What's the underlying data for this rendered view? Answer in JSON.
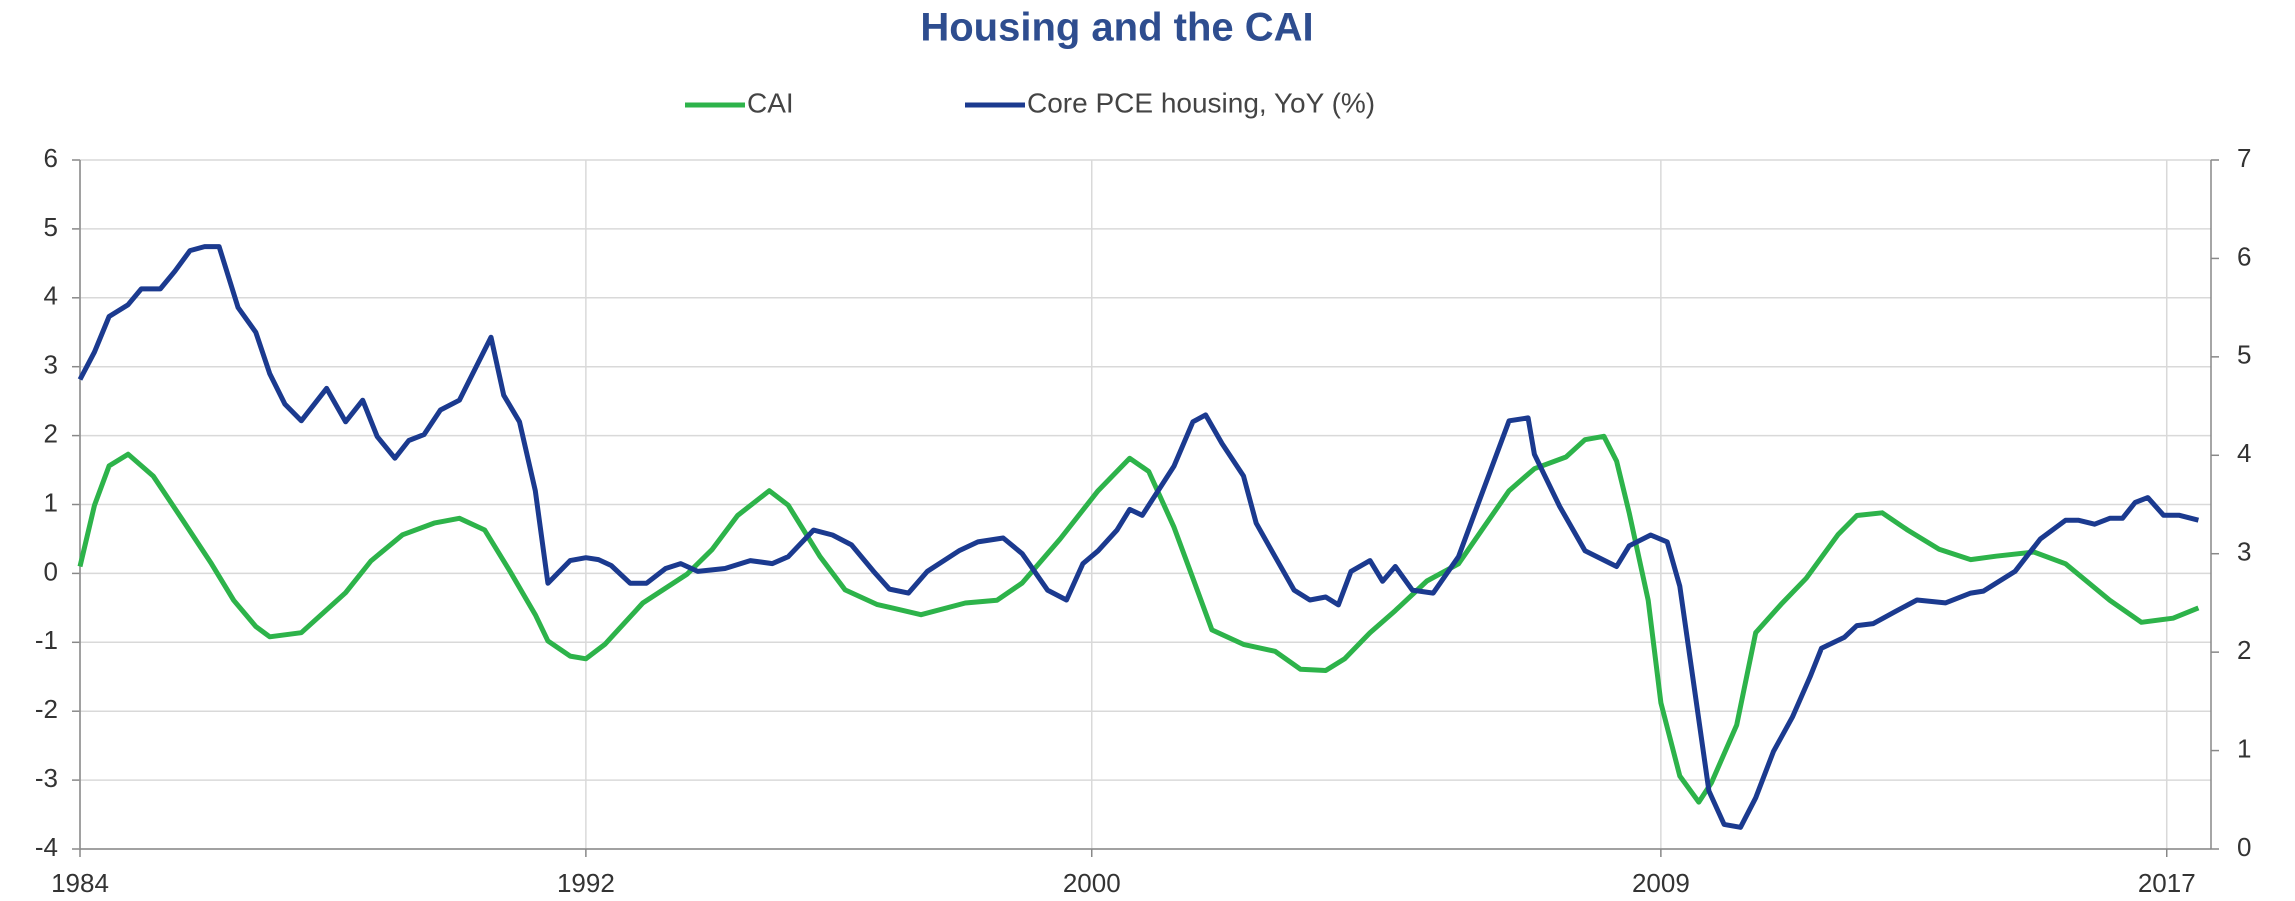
{
  "chart_data": {
    "type": "line",
    "title": "Housing and the CAI",
    "xlim": [
      1984,
      2017.7
    ],
    "xticks": [
      1984,
      1992,
      2000,
      2009,
      2017
    ],
    "ylim": [
      -4,
      6
    ],
    "yticks": [
      -4,
      -3,
      -2,
      -1,
      0,
      1,
      2,
      3,
      4,
      5,
      6
    ],
    "y2lim": [
      0,
      7
    ],
    "y2ticks": [
      0,
      1,
      2,
      3,
      4,
      5,
      6,
      7
    ],
    "grid": true,
    "legend": "top",
    "series": [
      {
        "name": "CAI",
        "color": "#2db34a",
        "x": [
          1984.0,
          1984.23,
          1984.46,
          1984.76,
          1985.16,
          1985.62,
          1986.08,
          1986.43,
          1986.78,
          1987.0,
          1987.5,
          1988.2,
          1988.6,
          1989.1,
          1989.6,
          1990.0,
          1990.4,
          1990.8,
          1991.2,
          1991.4,
          1991.75,
          1992.0,
          1992.3,
          1992.9,
          1993.6,
          1994.0,
          1994.4,
          1994.9,
          1995.2,
          1995.7,
          1996.1,
          1996.6,
          1997.3,
          1998.0,
          1998.5,
          1998.9,
          1999.5,
          2000.1,
          2000.6,
          2000.9,
          2001.3,
          2001.6,
          2001.9,
          2002.4,
          2002.9,
          2003.3,
          2003.7,
          2004.0,
          2004.4,
          2004.8,
          2005.3,
          2005.8,
          2006.2,
          2006.6,
          2007.0,
          2007.5,
          2007.8,
          2008.1,
          2008.3,
          2008.5,
          2008.8,
          2009.0,
          2009.3,
          2009.6,
          2009.8,
          2010.2,
          2010.5,
          2010.9,
          2011.3,
          2011.8,
          2012.1,
          2012.5,
          2012.9,
          2013.4,
          2013.9,
          2014.3,
          2014.9,
          2015.4,
          2016.1,
          2016.6,
          2017.1,
          2017.5
        ],
        "values": [
          0.1,
          0.99,
          1.56,
          1.73,
          1.41,
          0.78,
          0.14,
          -0.39,
          -0.77,
          -0.92,
          -0.86,
          -0.28,
          0.18,
          0.56,
          0.73,
          0.8,
          0.63,
          0.03,
          -0.6,
          -0.98,
          -1.2,
          -1.24,
          -1.03,
          -0.43,
          -0.01,
          0.35,
          0.84,
          1.2,
          0.99,
          0.25,
          -0.24,
          -0.45,
          -0.6,
          -0.43,
          -0.39,
          -0.14,
          0.5,
          1.2,
          1.67,
          1.48,
          0.67,
          -0.07,
          -0.82,
          -1.03,
          -1.13,
          -1.39,
          -1.41,
          -1.24,
          -0.86,
          -0.54,
          -0.11,
          0.14,
          0.67,
          1.2,
          1.52,
          1.69,
          1.94,
          1.99,
          1.63,
          0.88,
          -0.39,
          -1.88,
          -2.94,
          -3.32,
          -3.04,
          -2.2,
          -0.86,
          -0.45,
          -0.07,
          0.56,
          0.84,
          0.88,
          0.63,
          0.35,
          0.2,
          0.25,
          0.31,
          0.14,
          -0.39,
          -0.71,
          -0.65,
          -0.5
        ]
      },
      {
        "name": "Core PCE housing, YoY (%)",
        "color": "#1b3a8f",
        "axis": "y2",
        "x": [
          1984.0,
          1984.23,
          1984.46,
          1984.76,
          1984.97,
          1985.27,
          1985.5,
          1985.74,
          1985.97,
          1986.2,
          1986.5,
          1986.78,
          1987.0,
          1987.24,
          1987.5,
          1987.9,
          1988.2,
          1988.47,
          1988.7,
          1988.98,
          1989.2,
          1989.44,
          1989.7,
          1990.0,
          1990.5,
          1990.7,
          1990.95,
          1991.2,
          1991.4,
          1991.75,
          1992.0,
          1992.2,
          1992.4,
          1992.7,
          1992.96,
          1993.26,
          1993.5,
          1993.77,
          1994.2,
          1994.6,
          1994.95,
          1995.2,
          1995.6,
          1995.9,
          1996.2,
          1996.55,
          1996.8,
          1997.1,
          1997.4,
          1997.9,
          1998.2,
          1998.6,
          1998.9,
          1999.3,
          1999.6,
          1999.86,
          2000.1,
          2000.4,
          2000.6,
          2000.8,
          2001.3,
          2001.6,
          2001.8,
          2002.06,
          2002.4,
          2002.6,
          2002.9,
          2003.2,
          2003.45,
          2003.7,
          2003.9,
          2004.1,
          2004.4,
          2004.6,
          2004.8,
          2005.07,
          2005.4,
          2005.8,
          2006.1,
          2006.6,
          2006.9,
          2007.0,
          2007.4,
          2007.8,
          2008.3,
          2008.5,
          2008.84,
          2009.1,
          2009.3,
          2009.53,
          2009.76,
          2010.0,
          2010.26,
          2010.5,
          2010.78,
          2011.08,
          2011.36,
          2011.54,
          2011.9,
          2012.1,
          2012.36,
          2012.7,
          2013.05,
          2013.5,
          2013.9,
          2014.1,
          2014.6,
          2015.0,
          2015.4,
          2015.6,
          2015.86,
          2016.1,
          2016.3,
          2016.5,
          2016.7,
          2016.95,
          2017.2,
          2017.5
        ],
        "values": [
          4.77,
          5.05,
          5.41,
          5.53,
          5.69,
          5.69,
          5.87,
          6.08,
          6.12,
          6.12,
          5.5,
          5.25,
          4.83,
          4.52,
          4.35,
          4.68,
          4.34,
          4.56,
          4.19,
          3.97,
          4.15,
          4.21,
          4.46,
          4.56,
          5.2,
          4.61,
          4.34,
          3.64,
          2.7,
          2.93,
          2.96,
          2.94,
          2.88,
          2.7,
          2.7,
          2.85,
          2.9,
          2.82,
          2.85,
          2.93,
          2.9,
          2.97,
          3.24,
          3.19,
          3.09,
          2.82,
          2.64,
          2.6,
          2.82,
          3.03,
          3.12,
          3.16,
          3.0,
          2.63,
          2.53,
          2.9,
          3.03,
          3.24,
          3.45,
          3.39,
          3.89,
          4.34,
          4.41,
          4.12,
          3.79,
          3.31,
          2.97,
          2.63,
          2.53,
          2.56,
          2.48,
          2.82,
          2.93,
          2.72,
          2.87,
          2.63,
          2.6,
          2.97,
          3.49,
          4.35,
          4.38,
          4.01,
          3.48,
          3.03,
          2.87,
          3.08,
          3.19,
          3.12,
          2.67,
          1.63,
          0.59,
          0.25,
          0.22,
          0.52,
          0.99,
          1.34,
          1.75,
          2.04,
          2.15,
          2.27,
          2.29,
          2.41,
          2.53,
          2.5,
          2.6,
          2.62,
          2.82,
          3.15,
          3.34,
          3.34,
          3.3,
          3.36,
          3.36,
          3.52,
          3.57,
          3.39,
          3.39,
          3.34
        ]
      }
    ]
  }
}
